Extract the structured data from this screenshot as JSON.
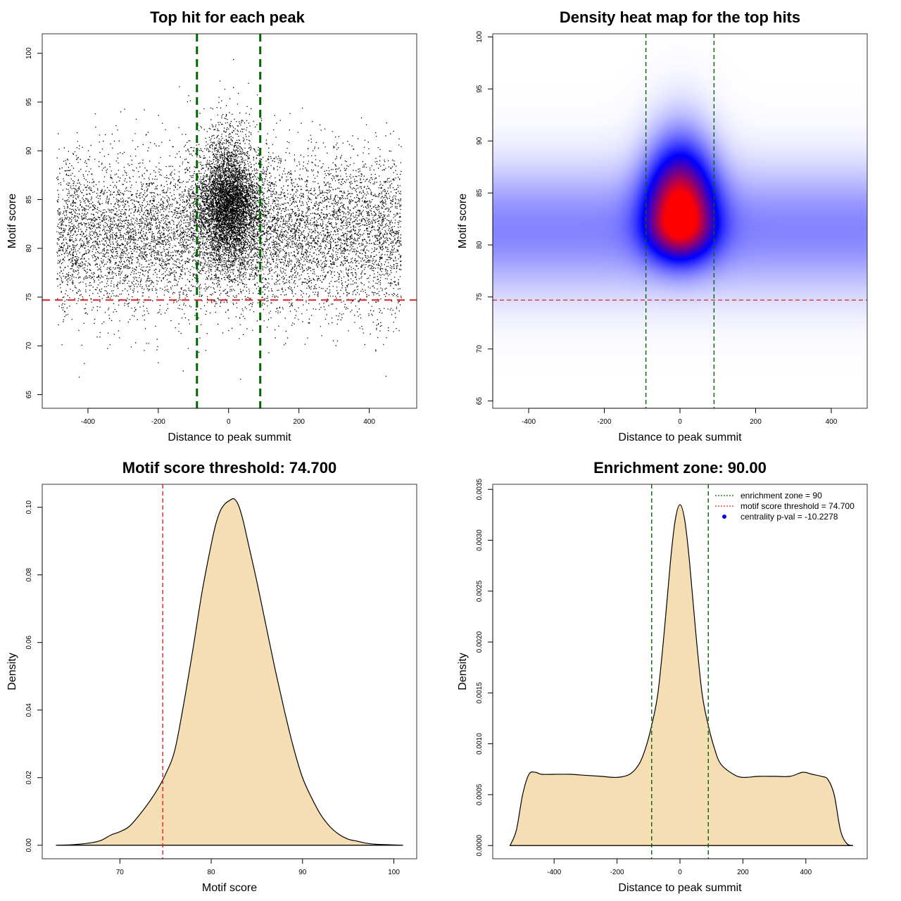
{
  "chart_data": [
    {
      "type": "scatter",
      "title": "Top hit for each peak",
      "xlabel": "Distance to peak summit",
      "ylabel": "Motif score",
      "xlim": [
        -530,
        535
      ],
      "ylim": [
        63.6,
        102.0
      ],
      "xticks": [
        -400,
        -200,
        0,
        200,
        400
      ],
      "yticks": [
        65,
        70,
        75,
        80,
        85,
        90,
        95,
        100
      ],
      "xtick_labels": [
        "-400",
        "-200",
        "0",
        "200",
        "400"
      ],
      "ytick_labels": [
        "65",
        "70",
        "75",
        "80",
        "85",
        "90",
        "95",
        "100"
      ],
      "points_summary": {
        "n_points_approx": 60000,
        "x_range": [
          -490,
          490
        ],
        "background_score_mean": 81.5,
        "background_score_sd": 4.0,
        "central_score_mean": 84.5,
        "central_score_sd": 4.5,
        "central_x_sd": 45,
        "max_score": 100
      },
      "vlines": [
        {
          "x": -90,
          "color": "#006400",
          "style": "dashed"
        },
        {
          "x": 90,
          "color": "#006400",
          "style": "dashed"
        }
      ],
      "hlines": [
        {
          "y": 74.7,
          "color": "#dd2222",
          "style": "dashed"
        }
      ],
      "grid": false
    },
    {
      "type": "heatmap",
      "title": "Density heat map for the top hits",
      "xlabel": "Distance to peak summit",
      "ylabel": "Motif score",
      "xlim": [
        -495,
        495
      ],
      "ylim": [
        64.3,
        100.3
      ],
      "xticks": [
        -400,
        -200,
        0,
        200,
        400
      ],
      "yticks": [
        65,
        70,
        75,
        80,
        85,
        90,
        95,
        100
      ],
      "xtick_labels": [
        "-400",
        "-200",
        "0",
        "200",
        "400"
      ],
      "ytick_labels": [
        "65",
        "70",
        "75",
        "80",
        "85",
        "90",
        "95",
        "100"
      ],
      "colormap": [
        "#ffffff",
        "#0000ff",
        "#ff0000"
      ],
      "peak_center": {
        "x": 0,
        "y": 82.5
      },
      "background_band_y": 81.5,
      "vlines": [
        {
          "x": -90,
          "color": "#006400",
          "style": "dashed"
        },
        {
          "x": 90,
          "color": "#006400",
          "style": "dashed"
        }
      ],
      "hlines": [
        {
          "y": 74.7,
          "color": "#dd3333",
          "style": "dashed"
        }
      ],
      "grid": false
    },
    {
      "type": "area",
      "title": "Motif score threshold: 74.700",
      "xlabel": "Motif score",
      "ylabel": "Density",
      "xlim": [
        61.5,
        102.5
      ],
      "ylim": [
        -0.004,
        0.1068
      ],
      "xticks": [
        70,
        80,
        90,
        100
      ],
      "yticks": [
        0.0,
        0.02,
        0.04,
        0.06,
        0.08,
        0.1
      ],
      "xtick_labels": [
        "70",
        "80",
        "90",
        "100"
      ],
      "ytick_labels": [
        "0.00",
        "0.02",
        "0.04",
        "0.06",
        "0.08",
        "0.10"
      ],
      "fill": "#f5deb3",
      "x": [
        63,
        65,
        67,
        68,
        69,
        70,
        71,
        72,
        73,
        74,
        75,
        76,
        77,
        78,
        79,
        80,
        80.5,
        81,
        81.5,
        82,
        82.5,
        83,
        83.5,
        84,
        85,
        86,
        87,
        88,
        89,
        90,
        91,
        92,
        93,
        94,
        95,
        96,
        97,
        98,
        99,
        100,
        101
      ],
      "y": [
        0.0,
        0.0002,
        0.0008,
        0.0015,
        0.003,
        0.004,
        0.0055,
        0.0085,
        0.012,
        0.016,
        0.021,
        0.028,
        0.042,
        0.058,
        0.075,
        0.089,
        0.095,
        0.099,
        0.101,
        0.102,
        0.1025,
        0.1005,
        0.096,
        0.09,
        0.078,
        0.065,
        0.052,
        0.04,
        0.029,
        0.02,
        0.014,
        0.009,
        0.0055,
        0.0032,
        0.0018,
        0.0012,
        0.0006,
        0.0003,
        0.0002,
        0.0001,
        0.0
      ],
      "vlines": [
        {
          "x": 74.7,
          "color": "#dd2222",
          "style": "dashed"
        }
      ],
      "grid": false
    },
    {
      "type": "area",
      "title": "Enrichment zone: 90.00",
      "xlabel": "Distance to peak summit",
      "ylabel": "Density",
      "xlim": [
        -595,
        595
      ],
      "ylim": [
        -0.00013,
        0.00355
      ],
      "xticks": [
        -400,
        -200,
        0,
        200,
        400
      ],
      "yticks": [
        0.0,
        0.0005,
        0.001,
        0.0015,
        0.002,
        0.0025,
        0.003,
        0.0035
      ],
      "xtick_labels": [
        "-400",
        "-200",
        "0",
        "200",
        "400"
      ],
      "ytick_labels": [
        "0.0000",
        "0.0005",
        "0.0010",
        "0.0015",
        "0.0020",
        "0.0025",
        "0.0030",
        "0.0035"
      ],
      "fill": "#f5deb3",
      "x": [
        -540,
        -520,
        -500,
        -480,
        -460,
        -440,
        -400,
        -350,
        -300,
        -250,
        -200,
        -160,
        -130,
        -110,
        -90,
        -70,
        -50,
        -30,
        -15,
        0,
        15,
        30,
        50,
        70,
        90,
        110,
        130,
        170,
        200,
        250,
        300,
        350,
        390,
        420,
        450,
        470,
        490,
        510,
        530,
        550
      ],
      "y": [
        0.0,
        0.00015,
        0.0005,
        0.0007,
        0.00072,
        0.0007,
        0.0007,
        0.0007,
        0.00069,
        0.00068,
        0.00067,
        0.0007,
        0.0008,
        0.00095,
        0.00118,
        0.0015,
        0.0021,
        0.0028,
        0.0032,
        0.00335,
        0.0032,
        0.0028,
        0.0021,
        0.0015,
        0.00118,
        0.00095,
        0.0008,
        0.0007,
        0.00067,
        0.00068,
        0.00068,
        0.00068,
        0.00072,
        0.0007,
        0.00068,
        0.00065,
        0.0005,
        0.00015,
        2e-05,
        0.0
      ],
      "vlines": [
        {
          "x": -90,
          "color": "#006400",
          "style": "dashed"
        },
        {
          "x": 90,
          "color": "#006400",
          "style": "dashed"
        }
      ],
      "legend": {
        "position": "top-right",
        "entries": [
          {
            "label": "enrichment zone = 90",
            "color": "#006400",
            "style": "dotted-line"
          },
          {
            "label": "motif score threshold = 74.700",
            "color": "#dd2222",
            "style": "dotted-line"
          },
          {
            "label": "centrality p-val = -10.2278",
            "color": "#0000ee",
            "style": "dot"
          }
        ]
      },
      "grid": false
    }
  ]
}
